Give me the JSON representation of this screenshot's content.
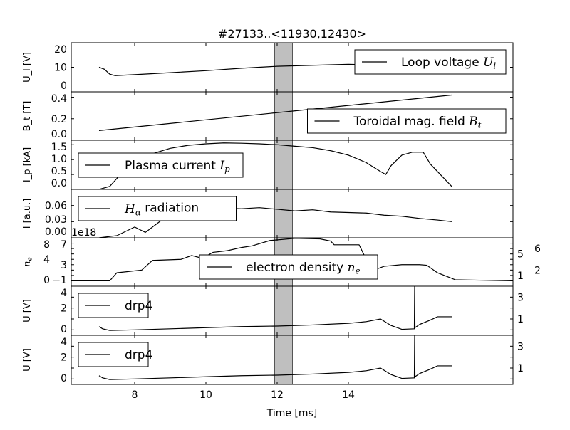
{
  "chart_data": {
    "type": "line",
    "title": "#27133..<11930,12430>",
    "xlabel": "Time [ms]",
    "xlim": [
      6.22,
      18.62
    ],
    "xticks": [
      8,
      10,
      12,
      14
    ],
    "xtick_labels": [
      "8",
      "10",
      "12",
      "14"
    ],
    "highlight_span": [
      11.93,
      12.43
    ],
    "highlight_color": "#bfbfbf",
    "panels": [
      {
        "ylabel": "U_l [V]",
        "ylim": [
          0,
          20
        ],
        "yticks": [
          0,
          10,
          20
        ],
        "ytick_labels": [
          "0",
          "10",
          "20"
        ],
        "legend": "Loop voltage U_l",
        "legend_pos": "top-right",
        "x": [
          7.0,
          7.15,
          7.3,
          7.45,
          8,
          9,
          10,
          11,
          12,
          13,
          14,
          14.5,
          15,
          16,
          16.9
        ],
        "y": [
          10,
          9.2,
          7.2,
          6.6,
          7.0,
          7.8,
          8.6,
          9.6,
          10.4,
          10.8,
          11.2,
          11.0,
          11.1,
          11.2,
          11.3
        ]
      },
      {
        "ylabel": "B_t [T]",
        "ylim": [
          0,
          0.45
        ],
        "yticks": [
          0,
          0.2,
          0.4
        ],
        "ytick_labels": [
          "0.0",
          "0.2",
          "0.4"
        ],
        "legend": "Toroidal mag. field B_t",
        "legend_pos": "bottom-right",
        "x": [
          7.0,
          16.9
        ],
        "y": [
          0.09,
          0.42
        ]
      },
      {
        "ylabel": "I_p [kA]",
        "ylim": [
          0,
          1.65
        ],
        "yticks": [
          0,
          0.5,
          1.0,
          1.5
        ],
        "ytick_labels": [
          "0.0",
          "0.5",
          "1.0",
          "1.5"
        ],
        "legend": "Plasma current I_p",
        "legend_pos": "left",
        "x": [
          7.0,
          7.3,
          7.6,
          8,
          8.5,
          9,
          9.5,
          10,
          10.5,
          11,
          11.5,
          12,
          12.5,
          13,
          13.5,
          14,
          14.5,
          14.9,
          15.05,
          15.2,
          15.5,
          15.8,
          16.1,
          16.3,
          16.9
        ],
        "y": [
          0,
          0.1,
          0.5,
          0.9,
          1.2,
          1.38,
          1.48,
          1.53,
          1.56,
          1.55,
          1.53,
          1.5,
          1.45,
          1.4,
          1.3,
          1.15,
          0.9,
          0.6,
          0.5,
          0.8,
          1.15,
          1.25,
          1.25,
          0.85,
          0.1
        ]
      },
      {
        "ylabel": "I [a.u.]",
        "ylim": [
          0,
          0.09
        ],
        "yticks": [
          0,
          0.03,
          0.06
        ],
        "ytick_labels": [
          "0.00",
          "0.03",
          "0.06"
        ],
        "legend": "H_alpha radiation",
        "legend_pos": "top-left",
        "x": [
          7.0,
          7.5,
          8,
          8.3,
          8.6,
          9,
          9.5,
          10,
          10.5,
          11,
          11.5,
          12,
          12.5,
          13,
          13.5,
          14,
          14.5,
          15,
          15.5,
          16,
          16.5,
          16.9
        ],
        "y": [
          0.0,
          0.004,
          0.02,
          0.01,
          0.025,
          0.045,
          0.05,
          0.052,
          0.055,
          0.054,
          0.056,
          0.053,
          0.05,
          0.052,
          0.048,
          0.047,
          0.046,
          0.042,
          0.04,
          0.036,
          0.033,
          0.03
        ]
      },
      {
        "ylabel": "n_e",
        "ylim": [
          -1,
          8
        ],
        "yticks": [
          -1,
          0,
          1,
          2,
          3,
          4,
          5,
          6,
          7,
          8
        ],
        "ytick_labels": [
          "−1",
          "0",
          "1",
          "2",
          "3",
          "4",
          "5",
          "6",
          "7",
          "8"
        ],
        "offset_text": "1e18",
        "legend": "electron density n_e",
        "legend_pos": "bottom-center",
        "x": [
          6.22,
          7.3,
          7.5,
          8.2,
          8.5,
          9.3,
          9.6,
          9.9,
          10.2,
          10.6,
          11.0,
          11.3,
          11.8,
          12.5,
          13.2,
          13.5,
          13.6,
          14.3,
          14.5,
          14.8,
          15.0,
          15.5,
          16.0,
          16.2,
          16.5,
          17.0,
          18.62
        ],
        "y": [
          0,
          0,
          1.5,
          2.0,
          3.8,
          4.0,
          4.7,
          4.2,
          5.3,
          5.6,
          6.2,
          6.5,
          7.5,
          7.9,
          7.8,
          7.4,
          6.7,
          6.7,
          4.0,
          2.2,
          2.7,
          3.0,
          3.0,
          2.9,
          1.5,
          0.2,
          0
        ]
      },
      {
        "ylabel": "U [V]",
        "ylim": [
          -0.5,
          4
        ],
        "yticks": [
          0,
          1,
          2,
          3,
          4
        ],
        "ytick_labels": [
          "0",
          "1",
          "2",
          "3",
          "4"
        ],
        "legend": "drp4",
        "legend_pos": "top-left",
        "x": [
          7.0,
          7.1,
          7.3,
          8,
          9,
          10,
          11,
          12,
          13,
          14,
          14.5,
          14.9,
          15.2,
          15.5,
          15.85,
          15.86,
          15.87,
          16.0,
          16.3,
          16.5,
          16.9
        ],
        "y": [
          0.3,
          0.1,
          -0.05,
          0.0,
          0.1,
          0.2,
          0.3,
          0.35,
          0.45,
          0.6,
          0.75,
          1.0,
          0.4,
          0.05,
          0.1,
          4.0,
          0.2,
          0.5,
          0.9,
          1.2,
          1.2
        ]
      },
      {
        "ylabel": "U [V]",
        "ylim": [
          -0.5,
          4
        ],
        "yticks": [
          0,
          1,
          2,
          3,
          4
        ],
        "ytick_labels": [
          "0",
          "1",
          "2",
          "3",
          "4"
        ],
        "legend": "drp4",
        "legend_pos": "top-left",
        "x": [
          7.0,
          7.1,
          7.3,
          8,
          9,
          10,
          11,
          12,
          13,
          14,
          14.5,
          14.9,
          15.2,
          15.5,
          15.85,
          15.86,
          15.87,
          16.0,
          16.3,
          16.5,
          16.9
        ],
        "y": [
          0.3,
          0.1,
          -0.05,
          0.0,
          0.1,
          0.2,
          0.3,
          0.35,
          0.45,
          0.6,
          0.75,
          1.0,
          0.4,
          0.05,
          0.1,
          4.0,
          0.2,
          0.5,
          0.9,
          1.2,
          1.2
        ]
      }
    ]
  }
}
